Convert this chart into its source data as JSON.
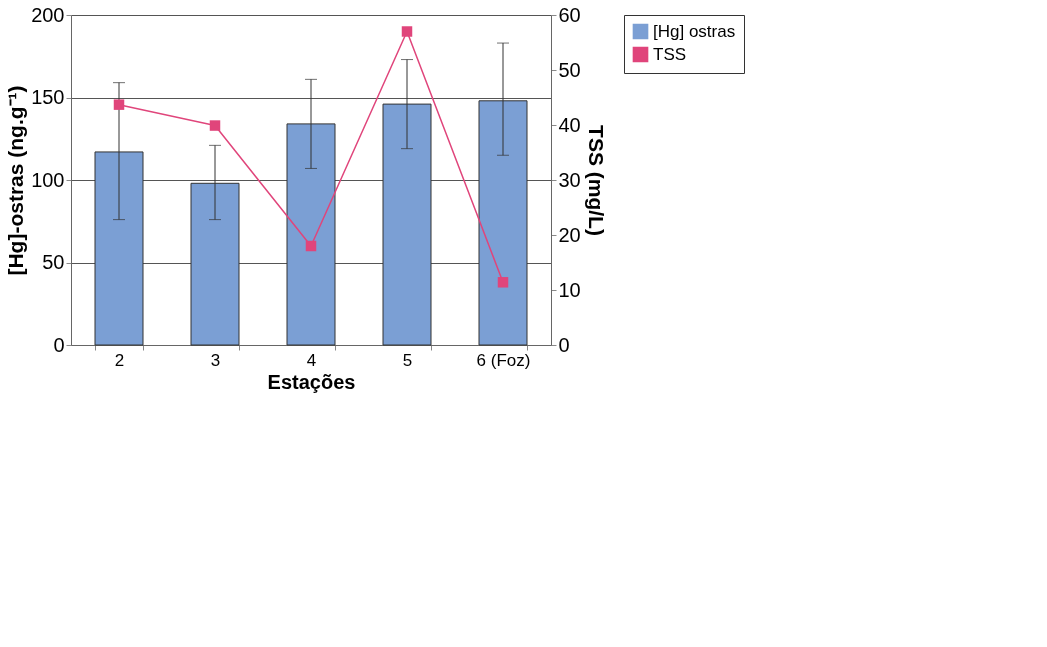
{
  "chart_data": {
    "type": "bar",
    "xlabel": "Estações",
    "ylabel": "[Hg]-ostras (ng.g⁻¹)",
    "y2label": "TSS (mg/L)",
    "categories": [
      "2",
      "3",
      "4",
      "5",
      "6 (Foz)"
    ],
    "series": [
      {
        "name": "[Hg] ostras",
        "color": "#7b9fd4",
        "values": [
          117,
          98,
          134,
          146,
          148
        ],
        "errors": [
          [
            76,
            159
          ],
          [
            76,
            121
          ],
          [
            107,
            161
          ],
          [
            119,
            173
          ],
          [
            115,
            183
          ]
        ]
      },
      {
        "name": "TSS",
        "type": "line",
        "axis": "y2",
        "color": "#e0457b",
        "marker": "square",
        "values": [
          43.7,
          39.9,
          18,
          57,
          11.4
        ]
      }
    ],
    "ylim": [
      0,
      200
    ],
    "yticks": [
      0,
      50,
      100,
      150,
      200
    ],
    "y2lim": [
      0,
      60
    ],
    "y2ticks": [
      0,
      10,
      20,
      30,
      40,
      50,
      60
    ],
    "grid": "y",
    "legend": "right"
  }
}
